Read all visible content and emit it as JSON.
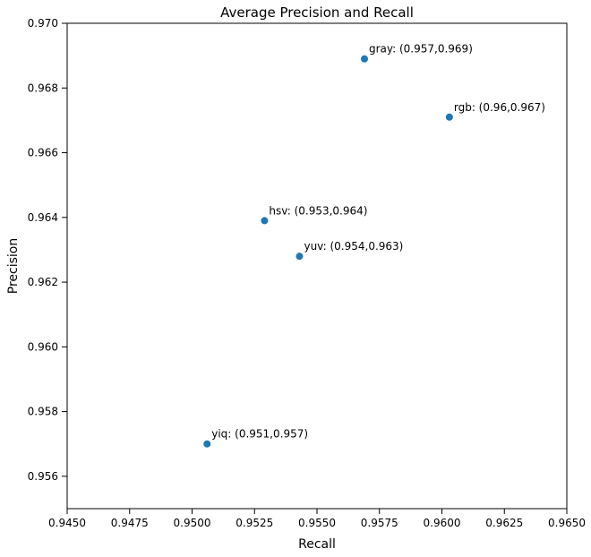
{
  "chart_data": {
    "type": "scatter",
    "title": "Average Precision and Recall",
    "xlabel": "Recall",
    "ylabel": "Precision",
    "xlim": [
      0.945,
      0.965
    ],
    "ylim": [
      0.955,
      0.97
    ],
    "x_ticks": [
      "0.9450",
      "0.9475",
      "0.9500",
      "0.9525",
      "0.9550",
      "0.9575",
      "0.9600",
      "0.9625",
      "0.9650"
    ],
    "y_ticks": [
      "0.956",
      "0.958",
      "0.960",
      "0.962",
      "0.964",
      "0.966",
      "0.968",
      "0.970"
    ],
    "grid": false,
    "marker_color": "#1f77b4",
    "points": [
      {
        "x": 0.9569,
        "y": 0.9689,
        "label": "gray: (0.957,0.969)"
      },
      {
        "x": 0.9603,
        "y": 0.9671,
        "label": "rgb: (0.96,0.967)"
      },
      {
        "x": 0.9529,
        "y": 0.9639,
        "label": "hsv: (0.953,0.964)"
      },
      {
        "x": 0.9543,
        "y": 0.9628,
        "label": "yuv: (0.954,0.963)"
      },
      {
        "x": 0.9506,
        "y": 0.957,
        "label": "yiq: (0.951,0.957)"
      }
    ]
  }
}
